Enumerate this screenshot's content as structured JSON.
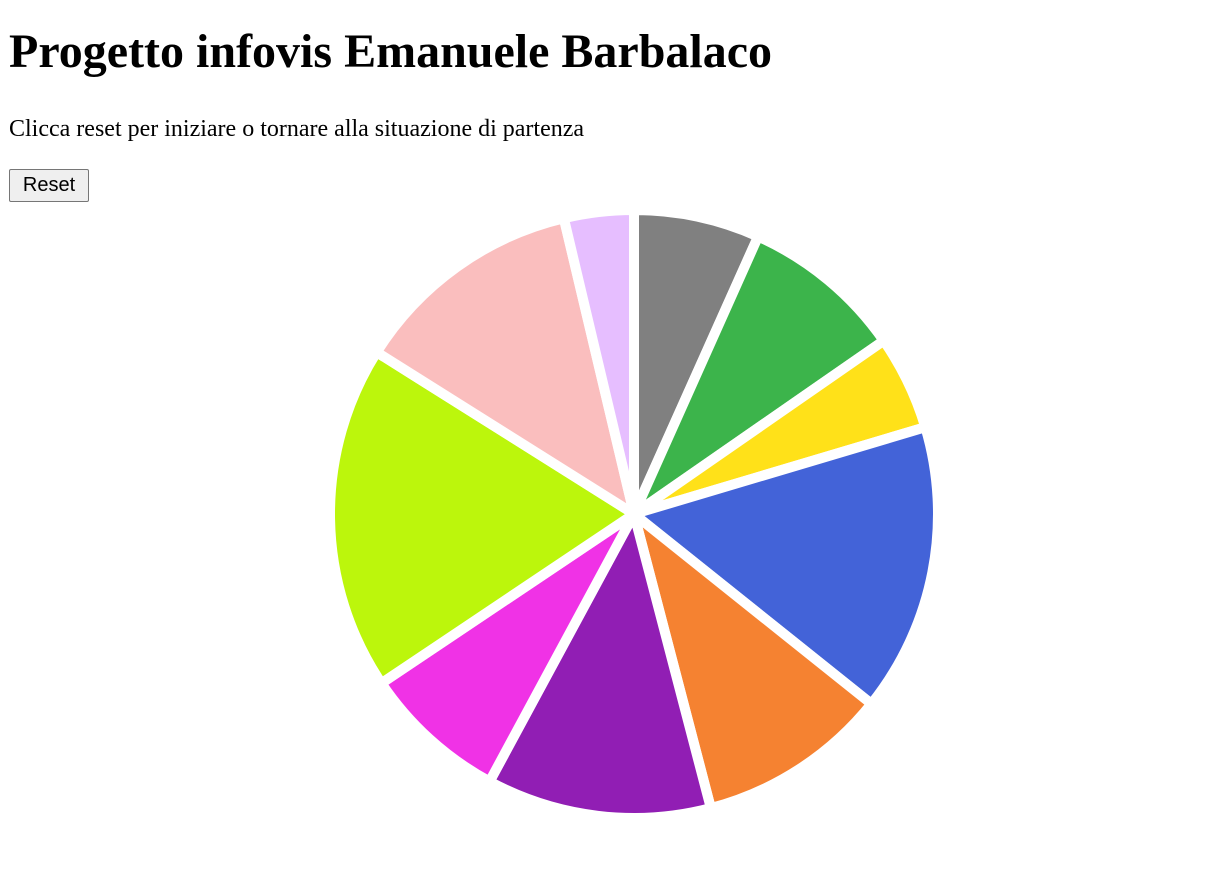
{
  "page": {
    "title": "Progetto infovis Emanuele Barbalaco",
    "instructions": "Clicca reset per iniziare o tornare alla situazione di partenza"
  },
  "controls": {
    "reset_label": "Reset"
  },
  "chart_data": {
    "type": "pie",
    "title": "",
    "start_angle_deg": 0,
    "direction": "clockwise",
    "slices": [
      {
        "value": 6.5,
        "color": "#808080"
      },
      {
        "value": 8.4,
        "color": "#3cb44b"
      },
      {
        "value": 4.9,
        "color": "#ffe119"
      },
      {
        "value": 14.9,
        "color": "#4363d8"
      },
      {
        "value": 9.9,
        "color": "#f58231"
      },
      {
        "value": 11.6,
        "color": "#911eb4"
      },
      {
        "value": 7.5,
        "color": "#f032e6"
      },
      {
        "value": 17.8,
        "color": "#bcf60c"
      },
      {
        "value": 12.0,
        "color": "#fabebe"
      },
      {
        "value": 3.6,
        "color": "#e6beff"
      }
    ]
  }
}
